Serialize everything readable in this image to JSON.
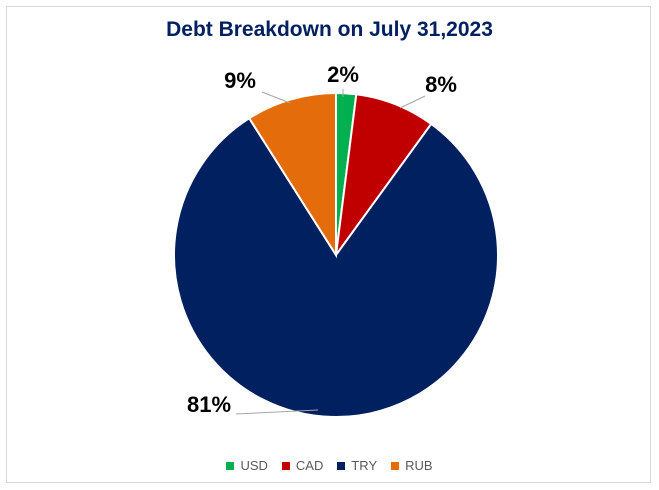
{
  "chart_data": {
    "type": "pie",
    "title": "Debt Breakdown on July 31,2023",
    "slices": [
      {
        "name": "USD",
        "value": 2,
        "label": "2%",
        "color": "#00B050"
      },
      {
        "name": "CAD",
        "value": 8,
        "label": "8%",
        "color": "#C00000"
      },
      {
        "name": "TRY",
        "value": 81,
        "label": "81%",
        "color": "#002060"
      },
      {
        "name": "RUB",
        "value": 9,
        "label": "9%",
        "color": "#E46C0A"
      }
    ],
    "legend_position": "bottom",
    "start_angle": "12 o'clock, clockwise"
  }
}
